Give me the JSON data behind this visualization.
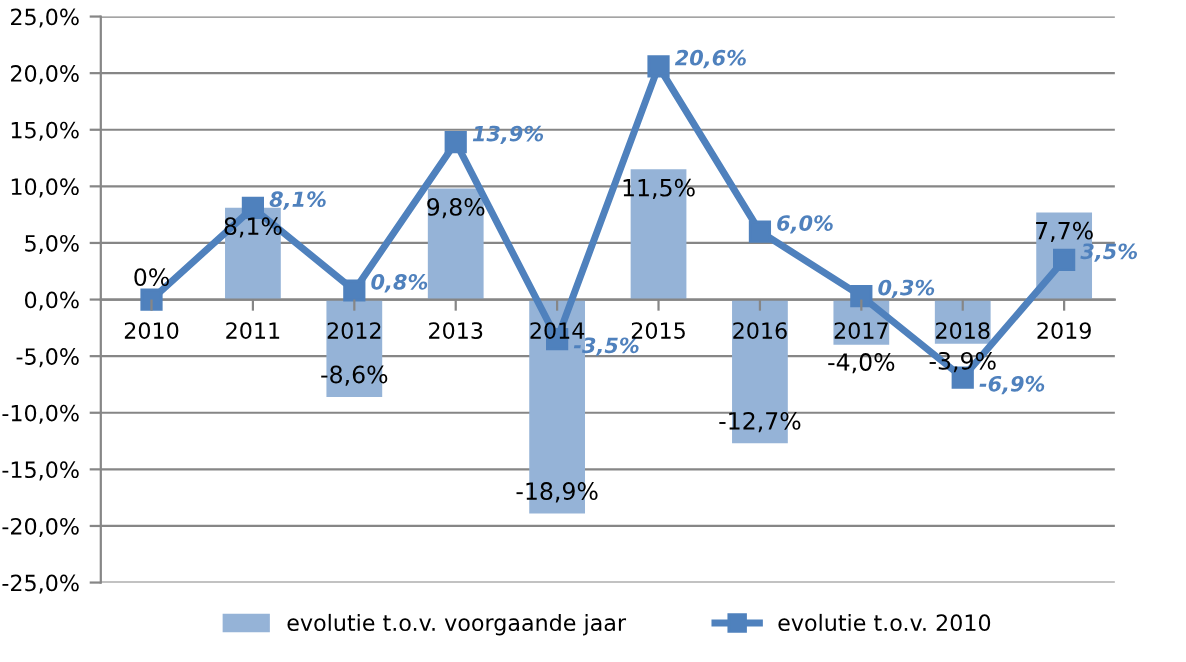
{
  "chart_data": {
    "type": "bar",
    "categories": [
      "2010",
      "2011",
      "2012",
      "2013",
      "2014",
      "2015",
      "2016",
      "2017",
      "2018",
      "2019"
    ],
    "series": [
      {
        "name": "evolutie t.o.v. voorgaande jaar",
        "color": "#95b3d7",
        "values": [
          0,
          8.1,
          -8.6,
          9.8,
          -18.9,
          11.5,
          -12.7,
          -4.0,
          -3.9,
          7.7
        ],
        "value_labels": [
          "0%",
          "8,1%",
          "-8,6%",
          "9,8%",
          "-18,9%",
          "11,5%",
          "-12,7%",
          "-4,0%",
          "-3,9%",
          "7,7%"
        ]
      },
      {
        "name": "evolutie t.o.v. 2010",
        "type": "line",
        "color": "#4f81bd",
        "marker": "square",
        "values": [
          0,
          8.1,
          0.8,
          13.9,
          -3.5,
          20.6,
          6.0,
          0.3,
          -6.9,
          3.5
        ],
        "value_labels": [
          null,
          "8,1%",
          "0,8%",
          "13,9%",
          "-3,5%",
          "20,6%",
          "6,0%",
          "0,3%",
          "-6,9%",
          "3,5%"
        ]
      }
    ],
    "ylim": [
      -25,
      25
    ],
    "yticks": [
      {
        "value": -25,
        "label": "-25,0%"
      },
      {
        "value": -20,
        "label": "-20,0%"
      },
      {
        "value": -15,
        "label": "-15,0%"
      },
      {
        "value": -10,
        "label": "-10,0%"
      },
      {
        "value": -5,
        "label": "-5,0%"
      },
      {
        "value": 0,
        "label": "0,0%"
      },
      {
        "value": 5,
        "label": "5,0%"
      },
      {
        "value": 10,
        "label": "10,0%"
      },
      {
        "value": 15,
        "label": "15,0%"
      },
      {
        "value": 20,
        "label": "20,0%"
      },
      {
        "value": 25,
        "label": "25,0%"
      }
    ],
    "grid": "y",
    "legend": "bottom"
  }
}
